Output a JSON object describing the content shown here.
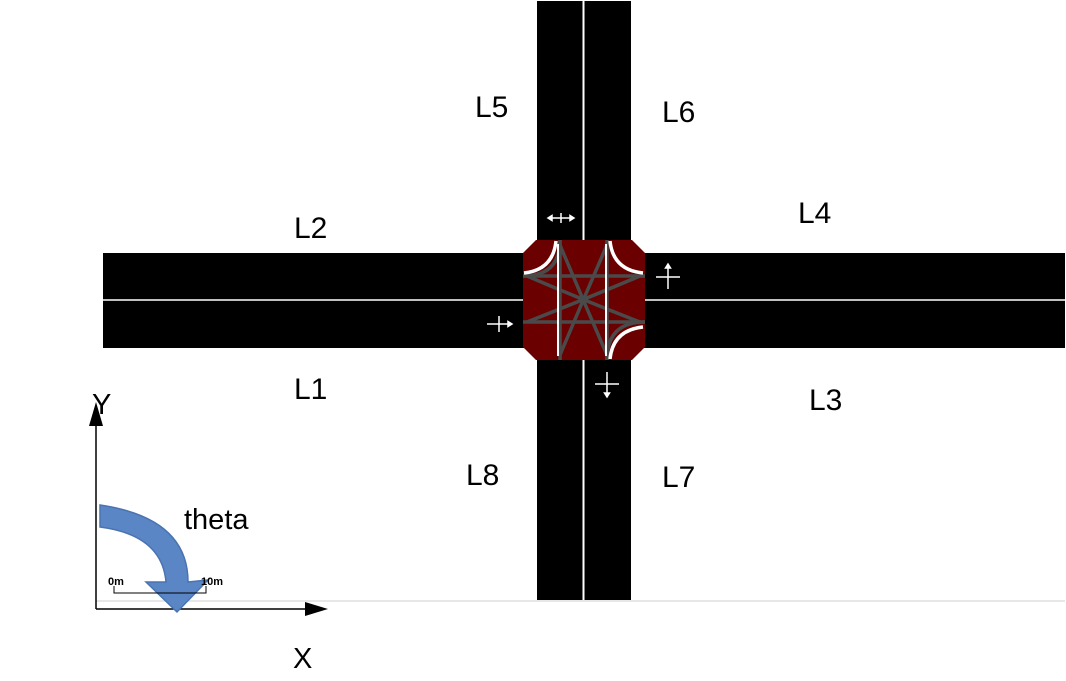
{
  "lanes": [
    {
      "id": "L1",
      "label": "L1"
    },
    {
      "id": "L2",
      "label": "L2"
    },
    {
      "id": "L3",
      "label": "L3"
    },
    {
      "id": "L4",
      "label": "L4"
    },
    {
      "id": "L5",
      "label": "L5"
    },
    {
      "id": "L6",
      "label": "L6"
    },
    {
      "id": "L7",
      "label": "L7"
    },
    {
      "id": "L8",
      "label": "L8"
    }
  ],
  "axes": {
    "x_label": "X",
    "y_label": "Y",
    "angle_label": "theta"
  },
  "scale_bar": {
    "start_label": "0m",
    "end_label": "10m"
  },
  "colors": {
    "road": "#000000",
    "lane_divider": "#ffffff",
    "intersection": "#6b0000",
    "turn_paths": "#4a4a4a",
    "theta_arrow": "#5b86c5",
    "background": "#ffffff"
  }
}
